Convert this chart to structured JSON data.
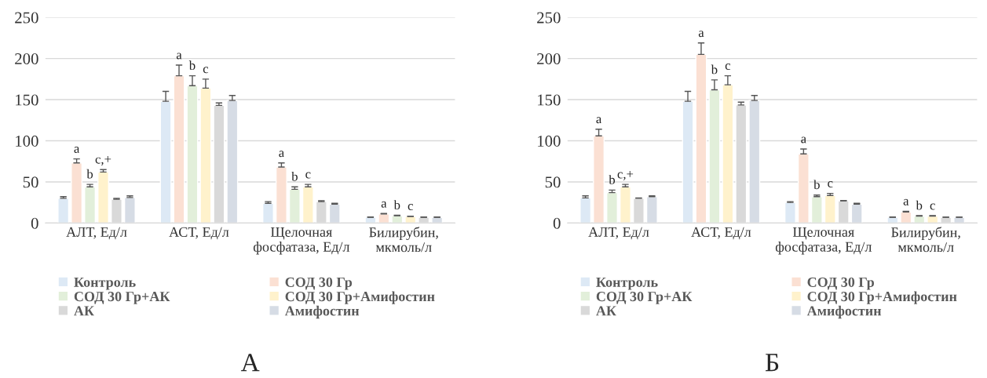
{
  "chart_data": [
    {
      "type": "bar",
      "title": "А",
      "categories": [
        "АЛТ, Ед/л",
        "АСТ, Ед/л",
        "Щелочная\nфосфатаза, Ед/л",
        "Билирубин,\nмкмоль/л"
      ],
      "series": [
        {
          "name": "Контроль",
          "color": "#dde9f5",
          "values": [
            30,
            148,
            24,
            7
          ],
          "errors": [
            [
              30,
              32
            ],
            [
              148,
              160
            ],
            [
              24,
              26
            ],
            [
              7,
              7.3
            ]
          ]
        },
        {
          "name": "СОД 30 Гр",
          "color": "#fbe0d3",
          "values": [
            73,
            179,
            68,
            11
          ],
          "errors": [
            [
              73,
              78
            ],
            [
              179,
              192
            ],
            [
              68,
              73
            ],
            [
              11,
              11.5
            ]
          ],
          "value_labels": [
            "a",
            "a",
            "a",
            "a"
          ]
        },
        {
          "name": "СОД 30 Гр+АК",
          "color": "#e2efda",
          "values": [
            44,
            167,
            41,
            9
          ],
          "errors": [
            [
              44,
              47
            ],
            [
              167,
              179
            ],
            [
              41,
              44
            ],
            [
              9,
              9.4
            ]
          ],
          "value_labels": [
            "b",
            "b",
            "b",
            "b"
          ]
        },
        {
          "name": "СОД 30 Гр+Амифостин",
          "color": "#fff2cc",
          "values": [
            62,
            164,
            44,
            8
          ],
          "errors": [
            [
              62,
              65
            ],
            [
              164,
              175
            ],
            [
              44,
              47
            ],
            [
              8,
              8.4
            ]
          ],
          "value_labels": [
            "c,+",
            "c",
            "c",
            "c"
          ]
        },
        {
          "name": "АК",
          "color": "#d9d9d9",
          "values": [
            29,
            143,
            26,
            7
          ],
          "errors": [
            [
              29,
              30
            ],
            [
              143,
              146
            ],
            [
              26,
              27
            ],
            [
              7,
              7.3
            ]
          ]
        },
        {
          "name": "Амифостин",
          "color": "#d6dce5",
          "values": [
            31,
            149,
            23,
            7
          ],
          "errors": [
            [
              31,
              33
            ],
            [
              149,
              155
            ],
            [
              23,
              24
            ],
            [
              7,
              7.3
            ]
          ]
        }
      ],
      "ylim": [
        0,
        250
      ],
      "yticks": [
        0,
        50,
        100,
        150,
        200,
        250
      ],
      "grid": "y",
      "legend": "bottom"
    },
    {
      "type": "bar",
      "title": "Б",
      "categories": [
        "АЛТ, Ед/л",
        "АСТ, Ед/л",
        "Щелочная\nфосфатаза, Ед/л",
        "Билирубин,\nмкмоль/л"
      ],
      "series": [
        {
          "name": "Контроль",
          "color": "#dde9f5",
          "values": [
            30.5,
            148,
            25,
            7
          ],
          "errors": [
            [
              30.5,
              33
            ],
            [
              148,
              160
            ],
            [
              25,
              26
            ],
            [
              7,
              7.3
            ]
          ]
        },
        {
          "name": "СОД 30 Гр",
          "color": "#fbe0d3",
          "values": [
            106,
            205,
            84,
            13.5
          ],
          "errors": [
            [
              106,
              114
            ],
            [
              205,
              219
            ],
            [
              84,
              90
            ],
            [
              13.5,
              14.3
            ]
          ],
          "value_labels": [
            "a",
            "a",
            "a",
            "a"
          ]
        },
        {
          "name": "СОД 30 Гр+АК",
          "color": "#e2efda",
          "values": [
            37,
            162,
            32,
            8.5
          ],
          "errors": [
            [
              37,
              40
            ],
            [
              162,
              174
            ],
            [
              32,
              34
            ],
            [
              8.5,
              8.9
            ]
          ],
          "value_labels": [
            "b",
            "b",
            "b",
            "b"
          ]
        },
        {
          "name": "СОД 30 Гр+Амифостин",
          "color": "#fff2cc",
          "values": [
            44,
            168,
            33.5,
            8.5
          ],
          "errors": [
            [
              44,
              47
            ],
            [
              168,
              179
            ],
            [
              33.5,
              36
            ],
            [
              8.5,
              8.9
            ]
          ],
          "value_labels": [
            "c,+",
            "c",
            "c",
            "c"
          ]
        },
        {
          "name": "АК",
          "color": "#d9d9d9",
          "values": [
            30,
            143.5,
            27,
            7
          ],
          "errors": [
            [
              30,
              30.5
            ],
            [
              143.5,
              147
            ],
            [
              27,
              27.3
            ],
            [
              7,
              7.2
            ]
          ]
        },
        {
          "name": "Амифостин",
          "color": "#d6dce5",
          "values": [
            32,
            149,
            23,
            7
          ],
          "errors": [
            [
              32,
              33
            ],
            [
              149,
              155
            ],
            [
              23,
              24
            ],
            [
              7,
              7.2
            ]
          ]
        }
      ],
      "ylim": [
        0,
        250
      ],
      "yticks": [
        0,
        50,
        100,
        150,
        200,
        250
      ],
      "grid": "y",
      "legend": "bottom"
    }
  ]
}
